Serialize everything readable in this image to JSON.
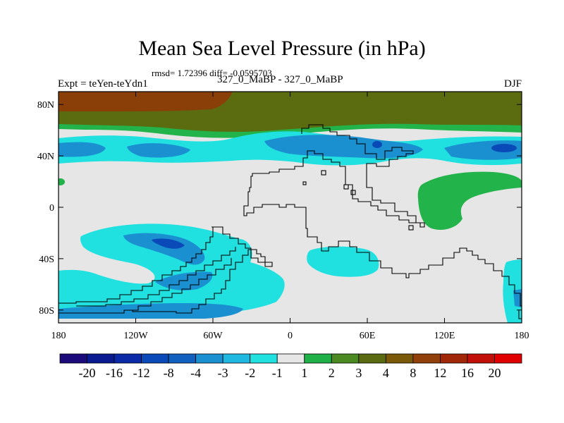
{
  "header": {
    "title": "Mean Sea Level Pressure (in hPa)",
    "stats": "rmsd= 1.72396 diff= -0.0595703",
    "experiment": "Expt = teYen-teYdn1",
    "center_label": "327_0_MaBP - 327_0_MaBP",
    "season": "DJF"
  },
  "chart_data": {
    "type": "heatmap",
    "title": "Mean Sea Level Pressure (in hPa)",
    "subtitle": "327_0_MaBP - 327_0_MaBP",
    "xlabel": "",
    "ylabel": "",
    "xlim": [
      -180,
      180
    ],
    "ylim": [
      -90,
      90
    ],
    "x_ticks": [
      {
        "value": -180,
        "label": "180"
      },
      {
        "value": -120,
        "label": "120W"
      },
      {
        "value": -60,
        "label": "60W"
      },
      {
        "value": 0,
        "label": "0"
      },
      {
        "value": 60,
        "label": "60E"
      },
      {
        "value": 120,
        "label": "120E"
      },
      {
        "value": 180,
        "label": "180"
      }
    ],
    "y_ticks": [
      {
        "value": 80,
        "label": "80N"
      },
      {
        "value": 40,
        "label": "40N"
      },
      {
        "value": 0,
        "label": "0"
      },
      {
        "value": -40,
        "label": "40S"
      },
      {
        "value": -80,
        "label": "80S"
      }
    ],
    "colorbar": {
      "levels": [
        "-20",
        "-16",
        "-12",
        "-8",
        "-4",
        "-3",
        "-2",
        "-1",
        "1",
        "2",
        "3",
        "4",
        "8",
        "12",
        "16",
        "20"
      ],
      "colors": [
        "#1a0a7a",
        "#0a1a90",
        "#0a2aa8",
        "#0a4ab8",
        "#1060c0",
        "#1a90d0",
        "#20b8e0",
        "#20e0e0",
        "#e6e6e6",
        "#20b048",
        "#4a8a20",
        "#5a6a10",
        "#7a5a08",
        "#904008",
        "#a02808",
        "#c01008",
        "#e00000"
      ]
    },
    "regions": [
      {
        "label": "Northern high-latitude positive anomaly (4 to 8 hPa)",
        "level": "4",
        "lon": [
          -180,
          180
        ],
        "lat": [
          60,
          90
        ]
      },
      {
        "label": "Northern positive anomaly core (8 to 12 hPa)",
        "level": "8",
        "lon": [
          -180,
          -65
        ],
        "lat": [
          72,
          90
        ]
      },
      {
        "label": "Northern mid-latitude negative band (-2 to -1 hPa)",
        "level": "-2",
        "lon": [
          -180,
          180
        ],
        "lat": [
          30,
          55
        ]
      },
      {
        "label": "Eastern positive anomaly (1 to 2 hPa)",
        "level": "1",
        "lon": [
          100,
          150
        ],
        "lat": [
          -15,
          25
        ]
      },
      {
        "label": "Southern negative belt (-2 to -1 hPa)",
        "level": "-2",
        "lon": [
          -180,
          60
        ],
        "lat": [
          -85,
          -20
        ]
      }
    ]
  }
}
